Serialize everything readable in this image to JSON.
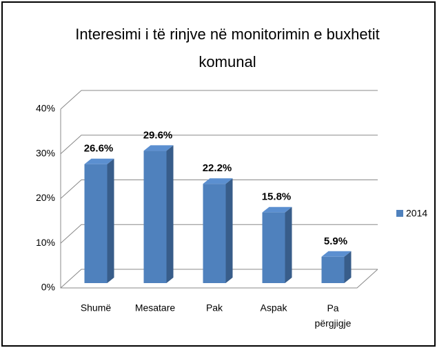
{
  "chart_data": {
    "type": "bar",
    "title": "Interesimi i të rinjve në monitorimin e buxhetit komunal",
    "categories": [
      "Shumë",
      "Mesatare",
      "Pak",
      "Aspak",
      "Pa përgjigje"
    ],
    "series": [
      {
        "name": "2014",
        "color": "#4f81bd",
        "values": [
          26.6,
          29.6,
          22.2,
          15.8,
          5.9
        ],
        "value_labels": [
          "26.6%",
          "29.6%",
          "22.2%",
          "15.8%",
          "5.9%"
        ]
      }
    ],
    "ylim": [
      0,
      40
    ],
    "yticks": [
      {
        "value": 0,
        "label": "0%"
      },
      {
        "value": 10,
        "label": "10%"
      },
      {
        "value": 20,
        "label": "20%"
      },
      {
        "value": 30,
        "label": "30%"
      },
      {
        "value": 40,
        "label": "40%"
      }
    ],
    "grid": true,
    "legend": "right"
  }
}
